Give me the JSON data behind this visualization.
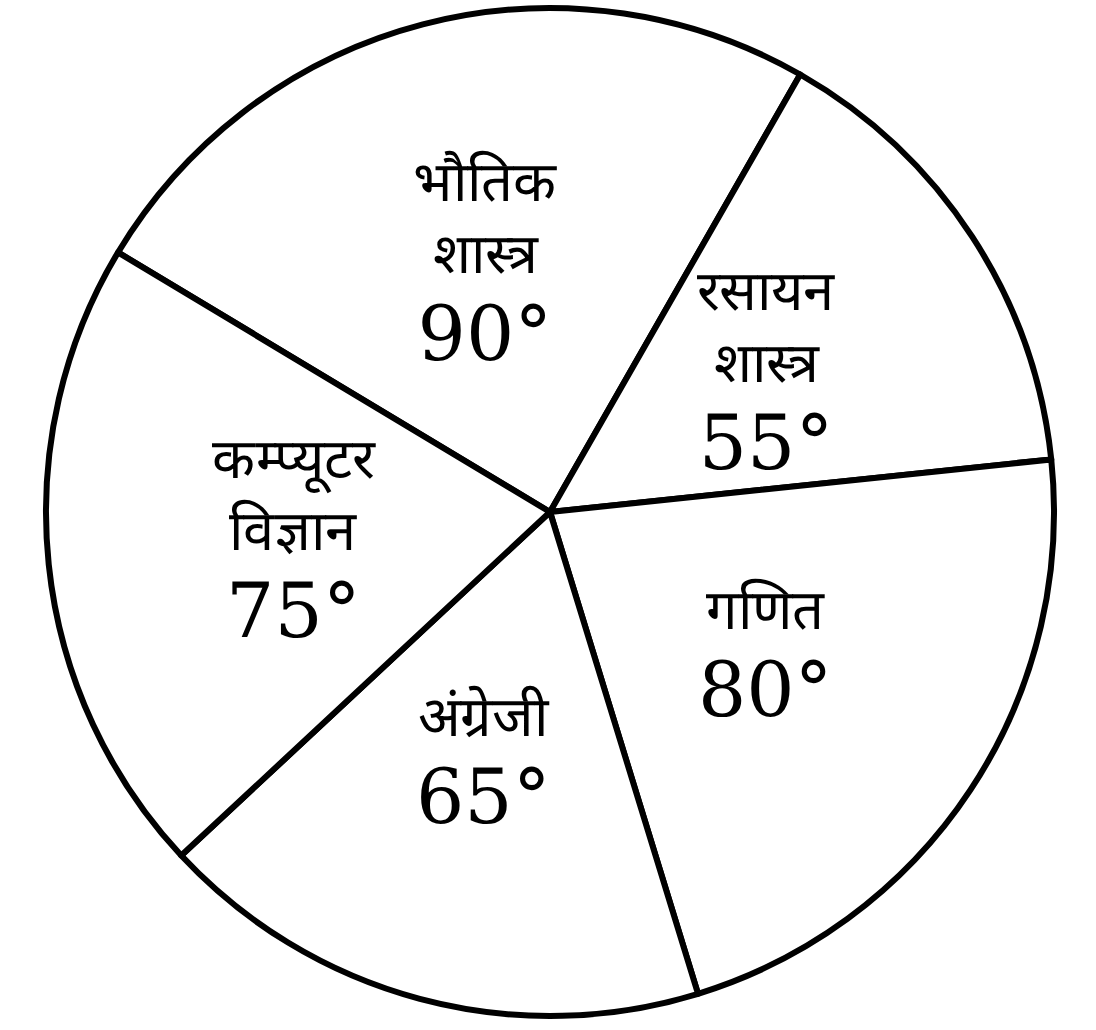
{
  "chart_data": {
    "type": "pie",
    "categories": [
      "भौतिक शास्त्र",
      "रसायन शास्त्र",
      "गणित",
      "अंग्रेजी",
      "कम्प्यूटर विज्ञान"
    ],
    "values": [
      90,
      55,
      80,
      65,
      75
    ],
    "value_labels": [
      "90°",
      "55°",
      "80°",
      "65°",
      "75°"
    ],
    "colors": [
      "#ffffff",
      "#ffffff",
      "#ffffff",
      "#ffffff",
      "#ffffff"
    ],
    "legend": false
  }
}
